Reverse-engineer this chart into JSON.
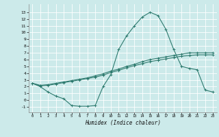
{
  "xlabel": "Humidex (Indice chaleur)",
  "bg_color": "#cceaea",
  "grid_color": "#ffffff",
  "line_color": "#2d7a6e",
  "x_ticks": [
    0,
    1,
    2,
    3,
    4,
    5,
    6,
    7,
    8,
    9,
    10,
    11,
    12,
    13,
    14,
    15,
    16,
    17,
    18,
    19,
    20,
    21,
    22,
    23
  ],
  "y_ticks": [
    -1,
    0,
    1,
    2,
    3,
    4,
    5,
    6,
    7,
    8,
    9,
    10,
    11,
    12,
    13
  ],
  "ylim": [
    -1.8,
    14.2
  ],
  "xlim": [
    -0.5,
    23.5
  ],
  "line1_x": [
    0,
    1,
    2,
    3,
    4,
    5,
    6,
    7,
    8,
    9,
    10,
    11,
    12,
    13,
    14,
    15,
    16,
    17,
    18,
    19,
    20,
    21,
    22,
    23
  ],
  "line1_y": [
    2.5,
    2.1,
    2.2,
    2.4,
    2.6,
    2.8,
    3.0,
    3.2,
    3.4,
    3.7,
    4.1,
    4.4,
    4.8,
    5.1,
    5.4,
    5.7,
    5.9,
    6.1,
    6.3,
    6.5,
    6.6,
    6.7,
    6.7,
    6.7
  ],
  "line2_x": [
    0,
    1,
    2,
    3,
    4,
    5,
    6,
    7,
    8,
    9,
    10,
    11,
    12,
    13,
    14,
    15,
    16,
    17,
    18,
    19,
    20,
    21,
    22,
    23
  ],
  "line2_y": [
    2.5,
    2.2,
    2.3,
    2.5,
    2.7,
    2.9,
    3.1,
    3.3,
    3.6,
    3.9,
    4.3,
    4.6,
    5.0,
    5.3,
    5.7,
    6.0,
    6.2,
    6.4,
    6.6,
    6.8,
    7.0,
    7.0,
    7.0,
    7.0
  ],
  "line3_x": [
    0,
    1,
    2,
    3,
    4,
    5,
    6,
    7,
    8,
    9,
    10,
    11,
    12,
    13,
    14,
    15,
    16,
    17,
    18,
    19,
    20,
    21,
    22,
    23
  ],
  "line3_y": [
    2.5,
    2.0,
    1.2,
    0.6,
    0.2,
    -0.8,
    -0.9,
    -0.9,
    -0.8,
    2.0,
    3.8,
    7.5,
    9.5,
    11.0,
    12.3,
    13.0,
    12.5,
    10.5,
    7.5,
    5.0,
    4.7,
    4.5,
    1.5,
    1.2
  ]
}
